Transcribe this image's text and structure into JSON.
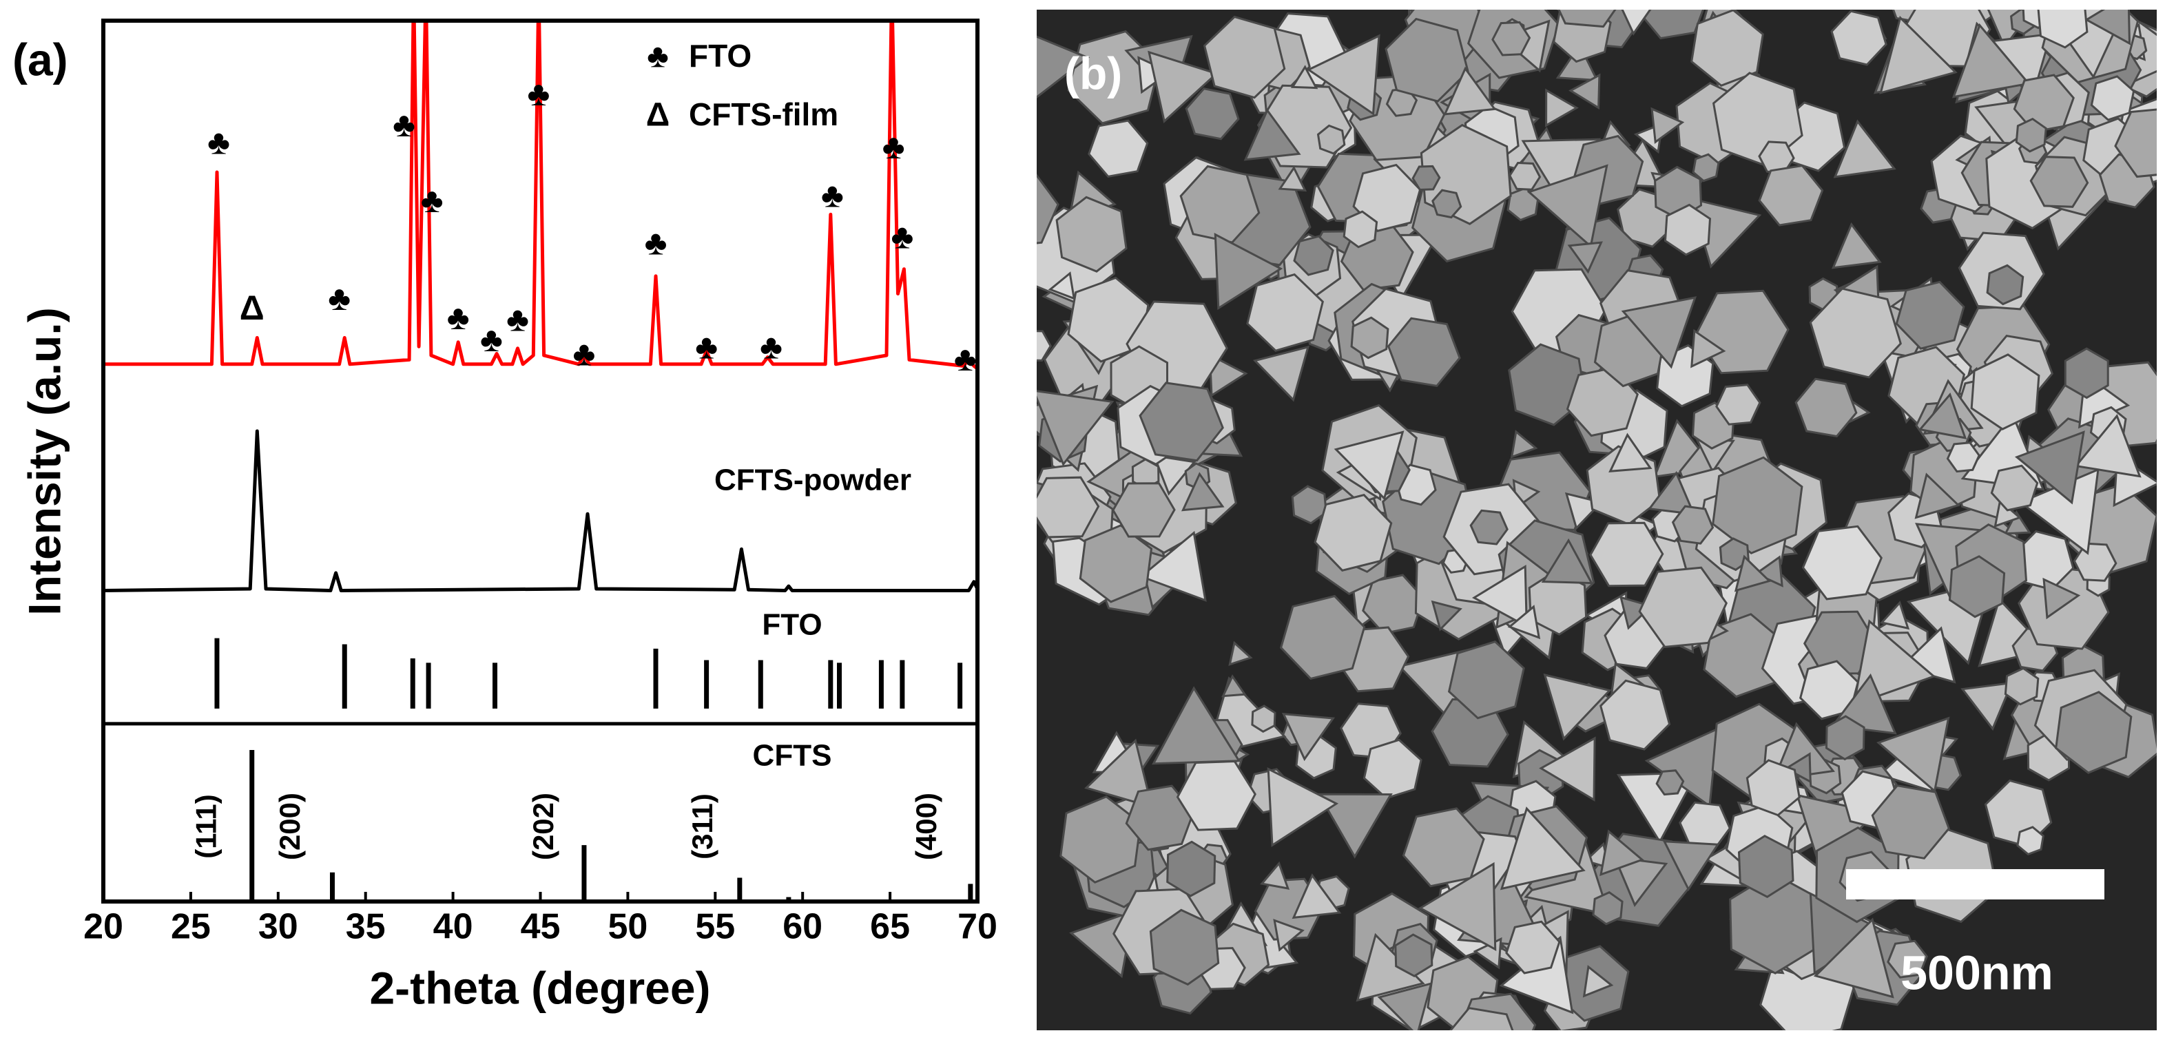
{
  "chart_data": {
    "type": "line",
    "panel_label": "(a)",
    "x_label": "2-theta (degree)",
    "y_label": "Intensity (a.u.)",
    "xlim": [
      20,
      70
    ],
    "xticks": [
      20,
      25,
      30,
      35,
      40,
      45,
      50,
      55,
      60,
      65,
      70
    ],
    "ylim": [
      0,
      100
    ],
    "grid": false,
    "series": [
      {
        "name": "CFTS-film",
        "color": "#ff0000",
        "x": [
          20,
          26.2,
          26.5,
          26.8,
          28.5,
          28.8,
          29.1,
          33.5,
          33.8,
          34.1,
          37.5,
          37.75,
          38.05,
          38.45,
          38.75,
          40.0,
          40.3,
          40.6,
          42.2,
          42.5,
          42.8,
          43.4,
          43.7,
          44.0,
          44.6,
          44.9,
          45.2,
          47.2,
          47.5,
          47.8,
          51.3,
          51.6,
          51.9,
          54.2,
          54.5,
          54.8,
          57.7,
          58.0,
          58.3,
          61.3,
          61.6,
          61.9,
          64.8,
          65.1,
          65.45,
          65.8,
          66.1,
          69.2,
          69.5,
          69.8,
          70
        ],
        "values": [
          61,
          61,
          82.8,
          61,
          61,
          64,
          61,
          61,
          64,
          61,
          61.5,
          104,
          63,
          104,
          62,
          61,
          63.5,
          61,
          61,
          62.2,
          61,
          61,
          62.8,
          61,
          62,
          104,
          62,
          61,
          62,
          61,
          61,
          71,
          61,
          61,
          62.5,
          61,
          61,
          61.8,
          61,
          61,
          78,
          61,
          62,
          104,
          69,
          71.8,
          61.5,
          60.8,
          61.5,
          60.8,
          60.5
        ]
      },
      {
        "name": "CFTS-powder",
        "color": "#000000",
        "x": [
          20,
          28.4,
          28.8,
          29.3,
          33.0,
          33.3,
          33.6,
          47.2,
          47.7,
          48.2,
          56.1,
          56.5,
          56.9,
          59.0,
          59.2,
          59.4,
          69.5,
          69.8,
          70
        ],
        "values": [
          35.3,
          35.5,
          53.4,
          35.5,
          35.3,
          37.3,
          35.3,
          35.5,
          44,
          35.5,
          35.4,
          40,
          35.4,
          35.3,
          35.8,
          35.3,
          35.3,
          36.3,
          35.5
        ]
      }
    ],
    "reference_patterns": [
      {
        "name": "FTO",
        "color": "#000000",
        "baseline": 21.9,
        "x": [
          26.5,
          33.8,
          37.7,
          38.6,
          42.4,
          51.6,
          54.5,
          57.6,
          61.6,
          62.1,
          64.5,
          65.7,
          69.0
        ],
        "values": [
          29.9,
          29.2,
          27.6,
          27.1,
          27.1,
          28.7,
          27.4,
          27.4,
          27.4,
          27.1,
          27.4,
          27.4,
          27.1
        ]
      },
      {
        "name": "CFTS",
        "color": "#000000",
        "baseline": 0,
        "x": [
          28.5,
          33.1,
          47.5,
          56.4,
          59.2,
          69.6
        ],
        "values": [
          17.2,
          3.3,
          6.4,
          2.7,
          0.5,
          2.0
        ],
        "hkl": [
          "(111)",
          "(200)",
          "(202)",
          "(311)",
          "(400)"
        ],
        "hkl_x": [
          26,
          30.8,
          45.3,
          54.4,
          67.2
        ]
      }
    ],
    "legend": [
      {
        "symbol": "♣",
        "label": "FTO"
      },
      {
        "symbol": "Δ",
        "label": "CFTS-film"
      }
    ],
    "annotations": [
      {
        "text": "♣",
        "x": 26.6,
        "y": 85.9
      },
      {
        "text": "Δ",
        "x": 28.5,
        "y": 67.1
      },
      {
        "text": "♣",
        "x": 33.5,
        "y": 68.2
      },
      {
        "text": "♣",
        "x": 37.2,
        "y": 87.9
      },
      {
        "text": "♣",
        "x": 38.8,
        "y": 79.3
      },
      {
        "text": "♣",
        "x": 40.3,
        "y": 66.0
      },
      {
        "text": "♣",
        "x": 42.2,
        "y": 63.5
      },
      {
        "text": "♣",
        "x": 43.7,
        "y": 65.8
      },
      {
        "text": "♣",
        "x": 44.9,
        "y": 91.4
      },
      {
        "text": "♣",
        "x": 47.5,
        "y": 61.9
      },
      {
        "text": "♣",
        "x": 51.6,
        "y": 74.5
      },
      {
        "text": "♣",
        "x": 54.5,
        "y": 62.7
      },
      {
        "text": "♣",
        "x": 58.2,
        "y": 62.7
      },
      {
        "text": "♣",
        "x": 61.7,
        "y": 79.9
      },
      {
        "text": "♣",
        "x": 65.2,
        "y": 85.4
      },
      {
        "text": "♣",
        "x": 65.7,
        "y": 75.2
      },
      {
        "text": "♣",
        "x": 69.3,
        "y": 61.3
      }
    ]
  },
  "image": {
    "label": "(b)",
    "scale_bar": "500nm"
  }
}
